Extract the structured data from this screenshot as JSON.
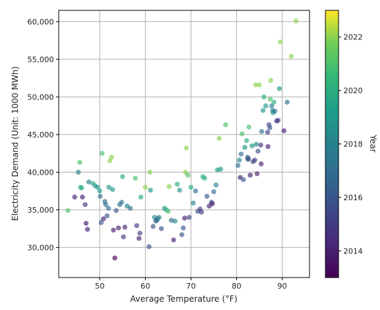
{
  "chart_data": {
    "type": "scatter",
    "title": "",
    "xlabel": "Average Temperature (°F)",
    "ylabel": "Electricity Demand (Unit: 1000 MWh)",
    "colorbar_label": "Year",
    "xlim": [
      41,
      96
    ],
    "ylim": [
      26000,
      61500
    ],
    "xticks": [
      50,
      60,
      70,
      80,
      90
    ],
    "yticks": [
      30000,
      35000,
      40000,
      45000,
      50000,
      55000,
      60000
    ],
    "ytick_labels": [
      "30,000",
      "35,000",
      "40,000",
      "45,000",
      "50,000",
      "55,000",
      "60,000"
    ],
    "colorbar_range": [
      2013,
      2023
    ],
    "colorbar_ticks": [
      2014,
      2016,
      2018,
      2020,
      2022
    ],
    "colormap": "viridis",
    "grid": true,
    "point_alpha": 0.65,
    "points": [
      [
        43,
        34900,
        2021
      ],
      [
        44.5,
        36700,
        2014
      ],
      [
        45.3,
        40000,
        2018
      ],
      [
        45.6,
        41300,
        2021
      ],
      [
        45.8,
        38000,
        2020
      ],
      [
        46,
        37900,
        2020
      ],
      [
        46.2,
        36700,
        2014
      ],
      [
        46.8,
        35700,
        2015
      ],
      [
        47,
        33200,
        2014
      ],
      [
        47.3,
        32400,
        2014
      ],
      [
        47.6,
        38700,
        2018
      ],
      [
        48.5,
        38500,
        2020
      ],
      [
        49,
        38200,
        2019
      ],
      [
        49.5,
        38000,
        2019
      ],
      [
        50,
        37500,
        2019
      ],
      [
        50.1,
        36800,
        2017
      ],
      [
        50.3,
        33300,
        2016
      ],
      [
        50.5,
        42500,
        2021
      ],
      [
        50.8,
        33800,
        2014
      ],
      [
        51.1,
        36100,
        2017
      ],
      [
        51.3,
        35700,
        2017
      ],
      [
        51.6,
        34200,
        2016
      ],
      [
        51.9,
        35200,
        2017
      ],
      [
        52,
        38000,
        2019
      ],
      [
        52.2,
        41500,
        2022
      ],
      [
        52.6,
        42000,
        2022
      ],
      [
        52.8,
        37700,
        2019
      ],
      [
        53,
        32300,
        2014
      ],
      [
        53.3,
        28600,
        2013
      ],
      [
        53.6,
        34900,
        2016
      ],
      [
        54.1,
        32600,
        2014
      ],
      [
        54.4,
        35700,
        2017
      ],
      [
        54.8,
        36000,
        2017
      ],
      [
        55,
        39400,
        2020
      ],
      [
        55.2,
        31400,
        2015
      ],
      [
        55.5,
        32700,
        2014
      ],
      [
        56,
        35500,
        2018
      ],
      [
        56.7,
        35200,
        2017
      ],
      [
        57.8,
        39200,
        2021
      ],
      [
        58.1,
        32900,
        2015
      ],
      [
        58.6,
        31200,
        2014
      ],
      [
        58.8,
        31900,
        2015
      ],
      [
        59,
        36700,
        2020
      ],
      [
        60,
        38000,
        2022
      ],
      [
        60.8,
        30100,
        2016
      ],
      [
        61.1,
        37600,
        2019
      ],
      [
        61,
        40000,
        2022
      ],
      [
        61.7,
        32800,
        2016
      ],
      [
        62,
        34000,
        2018
      ],
      [
        62.3,
        33500,
        2017
      ],
      [
        62.5,
        33600,
        2017
      ],
      [
        62.7,
        33800,
        2017
      ],
      [
        63,
        34000,
        2018
      ],
      [
        63.5,
        32500,
        2016
      ],
      [
        64.2,
        35200,
        2019
      ],
      [
        64.6,
        35000,
        2020
      ],
      [
        65,
        34800,
        2021
      ],
      [
        65.2,
        38100,
        2022
      ],
      [
        65.7,
        33600,
        2017
      ],
      [
        66.2,
        31000,
        2014
      ],
      [
        66.5,
        33500,
        2018
      ],
      [
        67,
        38400,
        2020
      ],
      [
        67.5,
        37600,
        2019
      ],
      [
        68,
        31700,
        2016
      ],
      [
        68.3,
        32600,
        2016
      ],
      [
        68.6,
        33900,
        2014
      ],
      [
        68.8,
        40000,
        2022
      ],
      [
        69,
        43200,
        2022
      ],
      [
        69.3,
        39600,
        2021
      ],
      [
        69.6,
        34000,
        2015
      ],
      [
        70,
        38000,
        2020
      ],
      [
        70.5,
        35900,
        2018
      ],
      [
        71,
        37500,
        2017
      ],
      [
        71.5,
        34800,
        2016
      ],
      [
        72,
        35100,
        2015
      ],
      [
        72.3,
        34700,
        2015
      ],
      [
        72.6,
        39400,
        2020
      ],
      [
        73,
        39200,
        2020
      ],
      [
        73.5,
        36800,
        2016
      ],
      [
        74,
        35500,
        2014
      ],
      [
        74.5,
        36000,
        2015
      ],
      [
        74.7,
        35800,
        2014
      ],
      [
        75,
        37400,
        2017
      ],
      [
        75.5,
        38300,
        2018
      ],
      [
        75.8,
        40300,
        2019
      ],
      [
        76.2,
        44500,
        2022
      ],
      [
        76.5,
        40400,
        2019
      ],
      [
        77.6,
        46300,
        2021
      ],
      [
        80.3,
        40900,
        2017
      ],
      [
        80.6,
        41600,
        2018
      ],
      [
        80.8,
        39300,
        2014
      ],
      [
        81,
        42400,
        2017
      ],
      [
        81.2,
        45100,
        2021
      ],
      [
        81.5,
        39000,
        2016
      ],
      [
        81.8,
        43300,
        2019
      ],
      [
        82.2,
        44200,
        2020
      ],
      [
        82.4,
        42000,
        2017
      ],
      [
        82.5,
        41700,
        2016
      ],
      [
        82.6,
        41800,
        2016
      ],
      [
        82.7,
        46000,
        2021
      ],
      [
        83,
        39600,
        2014
      ],
      [
        83.4,
        43500,
        2019
      ],
      [
        83.6,
        41400,
        2015
      ],
      [
        84,
        41600,
        2015
      ],
      [
        84.3,
        43700,
        2018
      ],
      [
        84.5,
        39800,
        2014
      ],
      [
        84.2,
        51600,
        2022
      ],
      [
        84.7,
        42800,
        2016
      ],
      [
        85,
        51600,
        2022
      ],
      [
        85.3,
        43600,
        2015
      ],
      [
        85.4,
        41100,
        2014
      ],
      [
        85.5,
        45400,
        2017
      ],
      [
        85.8,
        48200,
        2019
      ],
      [
        86,
        50000,
        2020
      ],
      [
        86.4,
        48800,
        2019
      ],
      [
        86.8,
        45300,
        2015
      ],
      [
        86.9,
        43400,
        2014
      ],
      [
        87.1,
        46300,
        2015
      ],
      [
        87.3,
        45900,
        2016
      ],
      [
        87.4,
        49700,
        2021
      ],
      [
        87.5,
        52200,
        2022
      ],
      [
        87.7,
        48800,
        2018
      ],
      [
        87.9,
        48200,
        2018
      ],
      [
        88,
        47900,
        2019
      ],
      [
        88.2,
        49300,
        2020
      ],
      [
        88.4,
        48100,
        2017
      ],
      [
        88.8,
        46800,
        2014
      ],
      [
        89.1,
        46900,
        2015
      ],
      [
        89.4,
        51100,
        2019
      ],
      [
        89.6,
        57300,
        2022
      ],
      [
        90.4,
        45500,
        2014
      ],
      [
        91.1,
        49300,
        2017
      ],
      [
        92,
        55400,
        2022
      ],
      [
        93,
        60100,
        2022
      ]
    ]
  }
}
